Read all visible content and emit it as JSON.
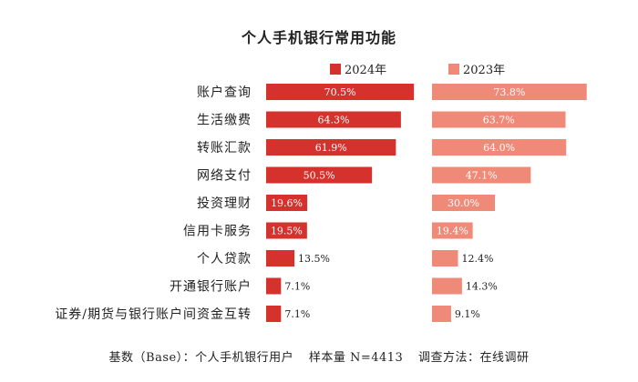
{
  "chart_data": {
    "type": "bar",
    "title": "个人手机银行常用功能",
    "categories": [
      "账户查询",
      "生活缴费",
      "转账汇款",
      "网络支付",
      "投资理财",
      "信用卡服务",
      "个人贷款",
      "开通银行账户",
      "证券/期货与银行账户间资金互转"
    ],
    "series": [
      {
        "name": "2024年",
        "values": [
          70.5,
          64.3,
          61.9,
          50.5,
          19.6,
          19.5,
          13.5,
          7.1,
          7.1
        ],
        "labels": [
          "70.5%",
          "64.3%",
          "61.9%",
          "50.5%",
          "19.6%",
          "19.5%",
          "13.5%",
          "7.1%",
          "7.1%"
        ]
      },
      {
        "name": "2023年",
        "values": [
          73.8,
          63.7,
          64.0,
          47.1,
          30.0,
          19.4,
          12.4,
          14.3,
          9.1
        ],
        "labels": [
          "73.8%",
          "63.7%",
          "64.0%",
          "47.1%",
          "30.0%",
          "19.4%",
          "12.4%",
          "14.3%",
          "9.1%"
        ]
      }
    ],
    "xlim": [
      0,
      75
    ],
    "legend": "top",
    "grid": false
  },
  "colors": {
    "series_2024": "#d6322d",
    "series_2023": "#f08a78",
    "text": "#222222"
  },
  "footer": {
    "base": "基数（Base）：个人手机银行用户",
    "sample": "样本量 N=4413",
    "method": "调查方法：在线调研"
  }
}
